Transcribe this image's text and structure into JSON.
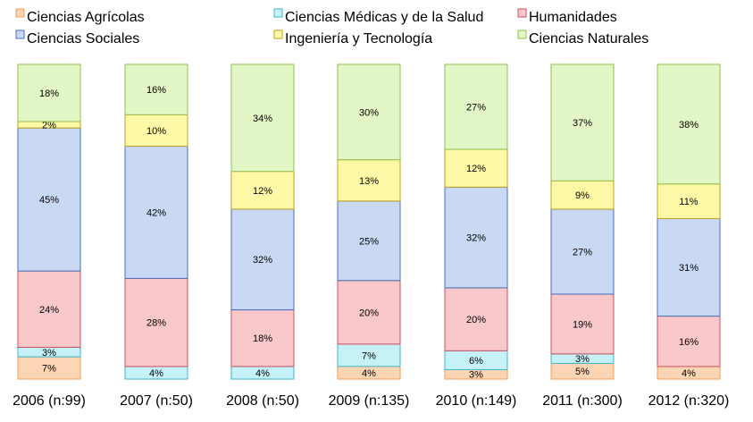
{
  "chart_data": {
    "type": "bar",
    "stacked": true,
    "percent": true,
    "categories": [
      "2006 (n:99)",
      "2007 (n:50)",
      "2008 (n:50)",
      "2009 (n:135)",
      "2010 (n:149)",
      "2011 (n:300)",
      "2012 (n:320)"
    ],
    "series": [
      {
        "name": "Ciencias Agrícolas",
        "color": "#fcd5b4",
        "values": [
          7,
          0,
          0,
          4,
          3,
          5,
          4
        ],
        "labels": [
          "7%",
          "",
          "",
          "4%",
          "3%",
          "5%",
          "4%"
        ]
      },
      {
        "name": "Ciencias Médicas y de la Salud",
        "color": "#c6f1f7",
        "values": [
          3,
          4,
          4,
          7,
          6,
          3,
          0
        ],
        "labels": [
          "3%",
          "4%",
          "4%",
          "7%",
          "6%",
          "3%",
          ""
        ]
      },
      {
        "name": "Humanidades",
        "color": "#f8c8cb",
        "values": [
          24,
          28,
          18,
          20,
          20,
          19,
          16
        ],
        "labels": [
          "24%",
          "28%",
          "18%",
          "20%",
          "20%",
          "19%",
          "16%"
        ]
      },
      {
        "name": "Ciencias Sociales",
        "color": "#c9d8f3",
        "values": [
          45,
          42,
          32,
          25,
          32,
          27,
          31
        ],
        "labels": [
          "45%",
          "42%",
          "32%",
          "25%",
          "32%",
          "27%",
          "31%"
        ]
      },
      {
        "name": "Ingeniería y Tecnología",
        "color": "#fef9a7",
        "values": [
          2,
          10,
          12,
          13,
          12,
          9,
          11
        ],
        "labels": [
          "2%",
          "10%",
          "12%",
          "13%",
          "12%",
          "9%",
          "11%"
        ]
      },
      {
        "name": "Ciencias Naturales",
        "color": "#e3f6c6",
        "values": [
          18,
          16,
          34,
          30,
          27,
          37,
          38
        ],
        "labels": [
          "18%",
          "16%",
          "34%",
          "30%",
          "27%",
          "37%",
          "38%"
        ]
      }
    ],
    "strokes": [
      "#f0a060",
      "#3fb8d0",
      "#d05060",
      "#4a6fc0",
      "#c0a020",
      "#8fc050"
    ],
    "legend": {
      "position": "top",
      "order": [
        "Ciencias Agrícolas",
        "Ciencias Médicas y de la Salud",
        "Humanidades",
        "Ciencias Sociales",
        "Ingeniería y Tecnología",
        "Ciencias Naturales"
      ]
    },
    "ylim": [
      0,
      100
    ],
    "grid": false
  }
}
